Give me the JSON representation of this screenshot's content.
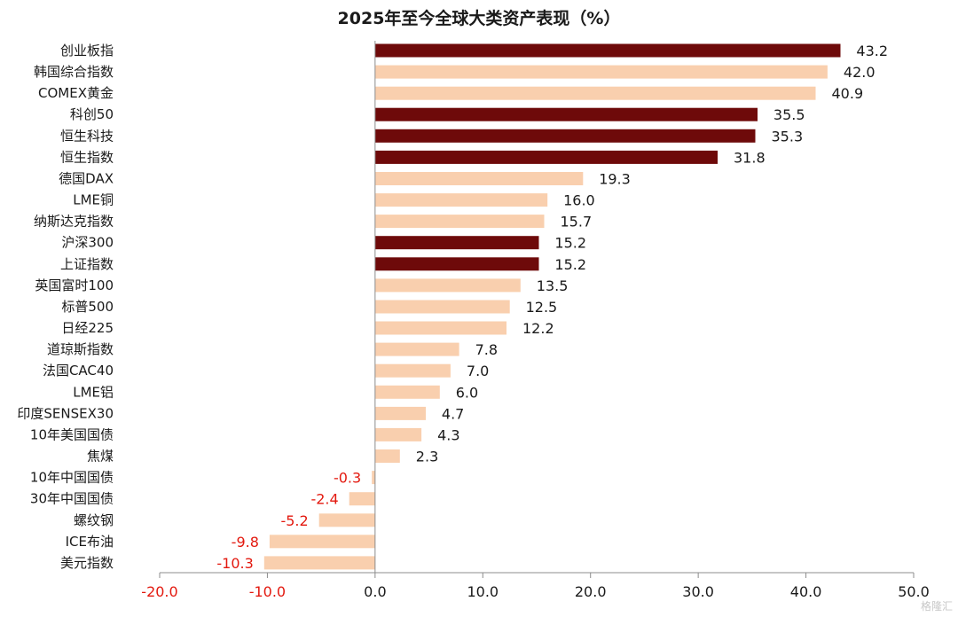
{
  "chart_data": {
    "type": "bar",
    "orientation": "horizontal",
    "title": "2025年至今全球大类资产表现（%）",
    "categories": [
      "创业板指",
      "韩国综合指数",
      "COMEX黄金",
      "科创50",
      "恒生科技",
      "恒生指数",
      "德国DAX",
      "LME铜",
      "纳斯达克指数",
      "沪深300",
      "上证指数",
      "英国富时100",
      "标普500",
      "日经225",
      "道琼斯指数",
      "法国CAC40",
      "LME铝",
      "印度SENSEX30",
      "10年美国国债",
      "焦煤",
      "10年中国国债",
      "30年中国国债",
      "螺纹钢",
      "ICE布油",
      "美元指数"
    ],
    "values": [
      43.2,
      42.0,
      40.9,
      35.5,
      35.3,
      31.8,
      19.3,
      16.0,
      15.7,
      15.2,
      15.2,
      13.5,
      12.5,
      12.2,
      7.8,
      7.0,
      6.0,
      4.7,
      4.3,
      2.3,
      -0.3,
      -2.4,
      -5.2,
      -9.8,
      -10.3
    ],
    "value_labels": [
      "43.2",
      "42.0",
      "40.9",
      "35.5",
      "35.3",
      "31.8",
      "19.3",
      "16.0",
      "15.7",
      "15.2",
      "15.2",
      "13.5",
      "12.5",
      "12.2",
      "7.8",
      "7.0",
      "6.0",
      "4.7",
      "4.3",
      "2.3",
      "-0.3",
      "-2.4",
      "-5.2",
      "-9.8",
      "-10.3"
    ],
    "highlight": [
      true,
      false,
      false,
      true,
      true,
      true,
      false,
      false,
      false,
      true,
      true,
      false,
      false,
      false,
      false,
      false,
      false,
      false,
      false,
      false,
      false,
      false,
      false,
      false,
      false
    ],
    "xlim": [
      -20,
      50
    ],
    "x_ticks": [
      "-20.0",
      "-10.0",
      "0.0",
      "10.0",
      "20.0",
      "30.0",
      "40.0",
      "50.0"
    ],
    "x_tick_values": [
      -20,
      -10,
      0,
      10,
      20,
      30,
      40,
      50
    ],
    "xlabel": "",
    "ylabel": "",
    "grid": false,
    "legend": "none",
    "colors": {
      "highlight_bar": "#6e0a0a",
      "normal_bar": "#f9cfae",
      "negative_text": "#e3190f",
      "positive_text": "#1a1a1a",
      "axis": "#8c8c8c"
    }
  },
  "watermark": "格隆汇"
}
